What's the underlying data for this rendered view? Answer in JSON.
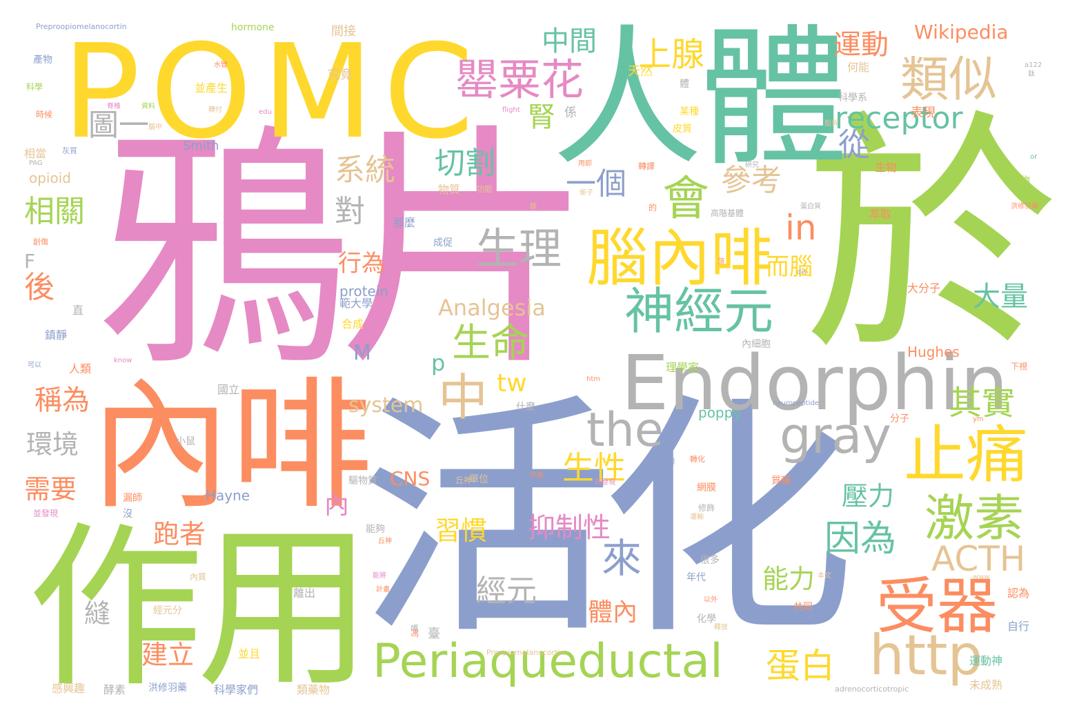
{
  "palette": {
    "pink": "#e58ac4",
    "green": "#a5d454",
    "teal": "#66c2a4",
    "blue": "#8c9fcc",
    "orange": "#fc8d61",
    "yellow": "#ffd82e",
    "tan": "#e5c494",
    "gray": "#b3b3b3"
  },
  "words": [
    "鴉片",
    "於",
    "活化",
    "內啡",
    "作用",
    "人體",
    "POMC",
    "Endorphin",
    "腦內啡",
    "受器",
    "止痛",
    "Periaqueductal",
    "gray",
    "http",
    "激素",
    "罌粟花",
    "類似",
    "會",
    "神經元",
    "the",
    "生理",
    "中",
    "上腺",
    "receptor",
    "中間",
    "參考",
    "系統",
    "切割",
    "一個",
    "圖一",
    "腎",
    "從",
    "相關",
    "運動",
    "Wikipedia",
    "in",
    "對",
    "來",
    "因為",
    "生命",
    "其實",
    "蛋白",
    "經元",
    "大量",
    "壓力",
    "生性",
    "抑制性",
    "ACTH",
    "跑者",
    "需要",
    "建立",
    "稱為",
    "環境",
    "後",
    "習慣",
    "能力",
    "體內",
    "Analgesia",
    "而腦",
    "行為",
    "tw",
    "system",
    "CNS",
    "protein",
    "opioid",
    "Hughes",
    "Smith",
    "Hayne",
    "poppy",
    "p",
    "M",
    "F",
    "縫",
    "內",
    "間接",
    "究竟",
    "hormone",
    "Preproopiomelanocortin",
    "何能",
    "表現",
    "科學系",
    "並產生",
    "天然",
    "某種",
    "皮質",
    "生物",
    "植物",
    "萃取",
    "大分子",
    "分子",
    "那麼",
    "範大學",
    "合成",
    "成促",
    "物質",
    "功能",
    "轉譯",
    "內細胞",
    "理學家",
    "國立",
    "小鼠",
    "人類",
    "鎮靜",
    "直",
    "漏師",
    "沒",
    "丘神",
    "化學",
    "年代",
    "很多",
    "能夠",
    "離出",
    "經元分",
    "內質",
    "並且",
    "洪修羽藥",
    "科學家們",
    "類藥物",
    "感興趣",
    "未成熟",
    "運動神",
    "自行",
    "認為",
    "共同",
    "Proopiomelanocortin",
    "adrenocorticotropic",
    "neuropeptide",
    "質稱",
    "修飾",
    "網膜",
    "驅物質",
    "什麼",
    "體",
    "係",
    "臺",
    "馮",
    "酵素",
    "並發現",
    "產物",
    "科學",
    "時候",
    "相當",
    "灰質",
    "PAG",
    "創傷",
    "水管",
    "轉化",
    "下視",
    "a122",
    "鈦",
    "edu",
    "flight",
    "htm",
    "know",
    "ym",
    "www",
    "or",
    "dis",
    "以外",
    "本文",
    "洪修羽藥",
    "高階基體",
    "嗎",
    "的",
    "偷子",
    "用即",
    "轉付",
    "腦中",
    "資料",
    "脊椎",
    "可以",
    "脂質",
    "頂",
    "胺",
    "網",
    "新發現",
    "運輸",
    "作者",
    "釋放",
    "能將",
    "計畫",
    "單位",
    "丘神",
    "蛋白質",
    "研究",
    "數位"
  ]
}
